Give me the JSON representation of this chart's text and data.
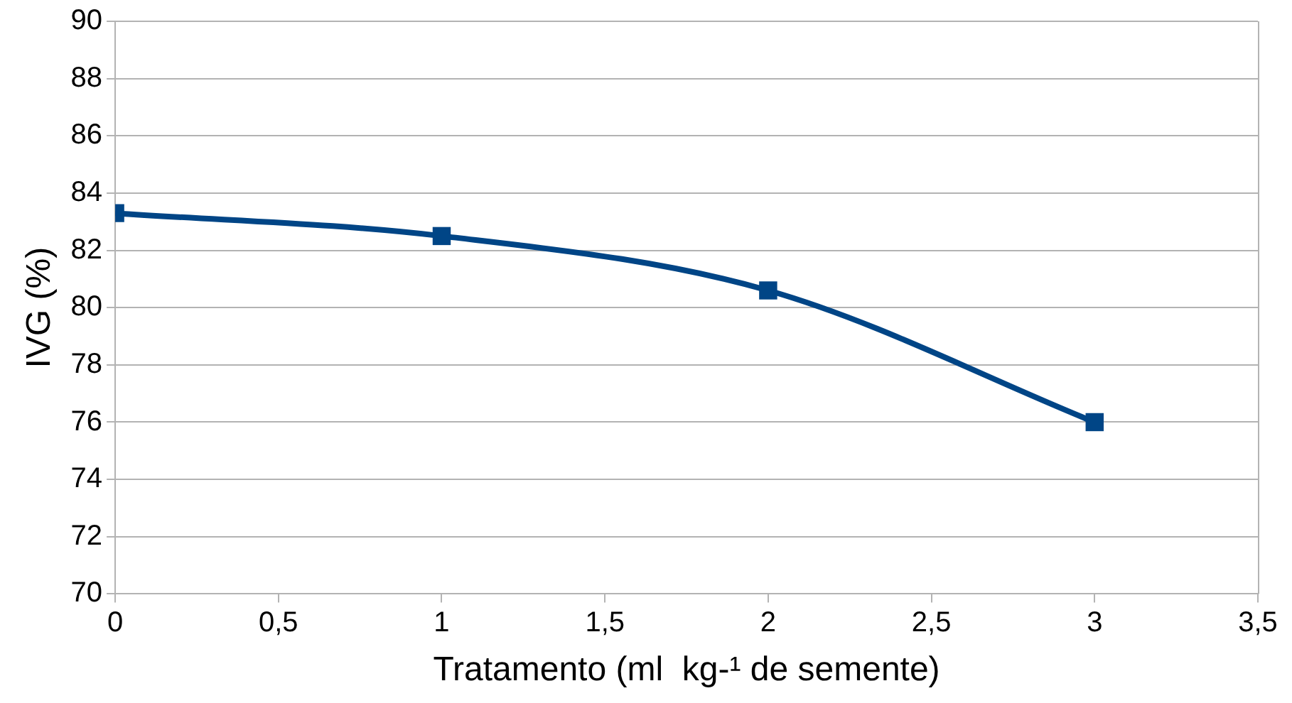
{
  "chart_data": {
    "type": "line",
    "xlabel": "Tratamento (ml  kg-¹ de semente)",
    "ylabel": "IVG (%)",
    "x": [
      0,
      1,
      2,
      3
    ],
    "series": [
      {
        "color": "#004586",
        "values": [
          83.3,
          82.5,
          80.6,
          76.0
        ]
      }
    ],
    "xlim": [
      0,
      3.5
    ],
    "xticks": [
      0,
      {
        "value": 0.5,
        "label": "0,5"
      },
      1,
      {
        "value": 1.5,
        "label": "1,5"
      },
      2,
      {
        "value": 2.5,
        "label": "2,5"
      },
      3,
      {
        "value": 3.5,
        "label": "3,5"
      }
    ],
    "ylim": [
      70,
      90
    ],
    "yticks": [
      70,
      72,
      74,
      76,
      78,
      80,
      82,
      84,
      86,
      88,
      90
    ],
    "grid": "y",
    "legend": false,
    "marker": "square",
    "line_style": "solid"
  }
}
